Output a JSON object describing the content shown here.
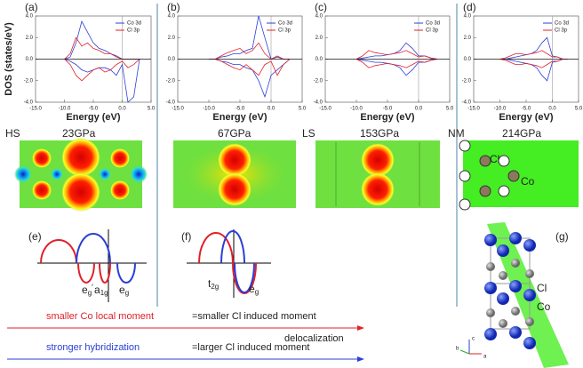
{
  "chart_data": [
    {
      "type": "line",
      "panel_label": "(a)",
      "y_label": "DOS (states/eV)",
      "x_label": "Energy (eV)",
      "x": [
        -10,
        -9,
        -8,
        -7,
        -6,
        -5,
        -4,
        -3,
        -2,
        -1,
        0,
        1,
        2,
        3
      ],
      "series": [
        {
          "name": "Co 3d",
          "color": "#2a3ed6",
          "values": [
            0,
            0.2,
            1.5,
            3.5,
            2.5,
            1.5,
            1,
            0.8,
            0.5,
            0.3,
            0,
            0,
            0,
            0
          ]
        },
        {
          "name": "Cl 3p",
          "color": "#e0202a",
          "values": [
            0,
            0.5,
            2,
            1.2,
            1.5,
            1,
            0.8,
            0.5,
            0.5,
            0.2,
            0,
            0,
            0,
            0
          ]
        },
        {
          "color": "#2a3ed6",
          "values": [
            0,
            -0.2,
            -0.5,
            -1,
            -1.2,
            -1,
            -0.8,
            -0.8,
            -1,
            -1.5,
            -0.5,
            -4,
            -3.5,
            0
          ]
        },
        {
          "color": "#e0202a",
          "values": [
            0,
            -0.5,
            -1.5,
            -2,
            -1.5,
            -1,
            -0.8,
            -1.2,
            -1,
            -0.5,
            -0.2,
            -0.8,
            -0.5,
            0
          ]
        }
      ],
      "xlim": [
        -15,
        5
      ],
      "xticks": [
        {
          "value": -15,
          "label": "-15.0"
        },
        {
          "value": -10,
          "label": "-10.0"
        },
        {
          "value": -5,
          "label": "-5.0"
        },
        {
          "value": 0,
          "label": "0.0"
        },
        {
          "value": 5,
          "label": "5.0"
        }
      ],
      "ylim": [
        -4,
        4
      ],
      "yticks": [
        {
          "value": -4,
          "label": "-4.0"
        },
        {
          "value": -2,
          "label": "-2.0"
        },
        {
          "value": 0,
          "label": "0.0"
        },
        {
          "value": 2,
          "label": "2.0"
        },
        {
          "value": 4,
          "label": "4.0"
        }
      ],
      "legend": "upper right"
    },
    {
      "type": "line",
      "panel_label": "(b)",
      "x_label": "Energy (eV)",
      "x": [
        -10,
        -9,
        -8,
        -7,
        -6,
        -5,
        -4,
        -3,
        -2,
        -1,
        0,
        1,
        2,
        3
      ],
      "series": [
        {
          "name": "Co 3d",
          "color": "#2a3ed6",
          "values": [
            0,
            0,
            0.2,
            0.3,
            0.5,
            0.5,
            0.8,
            1,
            4,
            2,
            0,
            0.2,
            0,
            0
          ]
        },
        {
          "name": "Cl 3p",
          "color": "#e0202a",
          "values": [
            0,
            0,
            0.3,
            0.6,
            0.8,
            1,
            0.5,
            0.8,
            1.5,
            0.5,
            0,
            0.3,
            0,
            0
          ]
        },
        {
          "color": "#2a3ed6",
          "values": [
            0,
            0,
            -0.2,
            -0.3,
            -0.5,
            -0.5,
            -0.8,
            -1,
            -2,
            -3.5,
            -1.5,
            -1,
            -0.5,
            0
          ]
        },
        {
          "color": "#e0202a",
          "values": [
            0,
            0,
            -0.2,
            -0.5,
            -0.8,
            -1,
            -0.5,
            -1,
            -1.5,
            -0.5,
            -0.2,
            -1.5,
            -0.5,
            0
          ]
        }
      ],
      "xlim": [
        -15,
        5
      ],
      "xticks": [
        {
          "value": -15,
          "label": "-15.0"
        },
        {
          "value": -10,
          "label": "-10.0"
        },
        {
          "value": -5,
          "label": "-5.0"
        },
        {
          "value": 0,
          "label": "0.0"
        },
        {
          "value": 5,
          "label": "5.0"
        }
      ],
      "ylim": [
        -4,
        4
      ],
      "yticks": [
        {
          "value": -4,
          "label": "-4.0"
        },
        {
          "value": -2,
          "label": "-2.0"
        },
        {
          "value": 0,
          "label": "0.0"
        },
        {
          "value": 2,
          "label": "2.0"
        },
        {
          "value": 4,
          "label": "4.0"
        }
      ],
      "legend": "upper right"
    },
    {
      "type": "line",
      "panel_label": "(c)",
      "x_label": "Energy (eV)",
      "x": [
        -10,
        -9,
        -8,
        -7,
        -6,
        -5,
        -4,
        -3,
        -2,
        -1,
        0,
        1,
        2,
        3
      ],
      "series": [
        {
          "name": "Co 3d",
          "color": "#2a3ed6",
          "values": [
            0,
            0.1,
            0.2,
            0.3,
            0.3,
            0.4,
            0.5,
            0.8,
            1.5,
            1,
            0.3,
            0.3,
            0.1,
            0
          ]
        },
        {
          "name": "Cl 3p",
          "color": "#e0202a",
          "values": [
            0,
            0.3,
            0.8,
            0.6,
            0.5,
            0.4,
            0.5,
            0.6,
            0.8,
            0.5,
            0.2,
            0.3,
            0.1,
            0
          ]
        },
        {
          "color": "#2a3ed6",
          "values": [
            0,
            -0.1,
            -0.2,
            -0.3,
            -0.3,
            -0.4,
            -0.5,
            -0.8,
            -1.5,
            -1,
            -0.3,
            -0.3,
            -0.1,
            0
          ]
        },
        {
          "color": "#e0202a",
          "values": [
            0,
            -0.3,
            -0.8,
            -0.6,
            -0.5,
            -0.4,
            -0.5,
            -0.6,
            -0.8,
            -0.5,
            -0.2,
            -0.3,
            -0.1,
            0
          ]
        }
      ],
      "xlim": [
        -15,
        5
      ],
      "xticks": [
        {
          "value": -15,
          "label": "-15.0"
        },
        {
          "value": -10,
          "label": "-10.0"
        },
        {
          "value": -5,
          "label": "-5.0"
        },
        {
          "value": 0,
          "label": "0.0"
        },
        {
          "value": 5,
          "label": "5.0"
        }
      ],
      "ylim": [
        -4,
        4
      ],
      "yticks": [
        {
          "value": -4,
          "label": "-4.0"
        },
        {
          "value": -2,
          "label": "-2.0"
        },
        {
          "value": 0,
          "label": "0.0"
        },
        {
          "value": 2,
          "label": "2.0"
        },
        {
          "value": 4,
          "label": "4.0"
        }
      ],
      "legend": "upper right"
    },
    {
      "type": "line",
      "panel_label": "(d)",
      "x_label": "Energy (eV)",
      "x": [
        -10,
        -9,
        -8,
        -7,
        -6,
        -5,
        -4,
        -3,
        -2,
        -1,
        0,
        1,
        2,
        3
      ],
      "series": [
        {
          "name": "Co 3d",
          "color": "#2a3ed6",
          "values": [
            0,
            0,
            0.1,
            0.2,
            0.3,
            0.4,
            0.5,
            0.8,
            1.5,
            2,
            0.3,
            0.2,
            0,
            0
          ]
        },
        {
          "name": "Cl 3p",
          "color": "#e0202a",
          "values": [
            0,
            0.1,
            0.3,
            0.5,
            0.5,
            0.4,
            0.5,
            0.6,
            0.8,
            0.5,
            0.2,
            0.2,
            0,
            0
          ]
        },
        {
          "color": "#2a3ed6",
          "values": [
            0,
            0,
            -0.1,
            -0.2,
            -0.3,
            -0.4,
            -0.5,
            -0.8,
            -1.5,
            -2,
            -0.3,
            -0.2,
            0,
            0
          ]
        },
        {
          "color": "#e0202a",
          "values": [
            0,
            -0.1,
            -0.3,
            -0.5,
            -0.5,
            -0.4,
            -0.5,
            -0.6,
            -0.8,
            -0.5,
            -0.2,
            -0.2,
            0,
            0
          ]
        }
      ],
      "xlim": [
        -15,
        5
      ],
      "xticks": [
        {
          "value": -15,
          "label": "-15.0"
        },
        {
          "value": -10,
          "label": "-10.0"
        },
        {
          "value": -5,
          "label": "-5.0"
        },
        {
          "value": 0,
          "label": "0.0"
        },
        {
          "value": 5,
          "label": "5.0"
        }
      ],
      "ylim": [
        -4,
        4
      ],
      "yticks": [
        {
          "value": -4,
          "label": "-4.0"
        },
        {
          "value": -2,
          "label": "-2.0"
        },
        {
          "value": 0,
          "label": "0.0"
        },
        {
          "value": 2,
          "label": "2.0"
        },
        {
          "value": 4,
          "label": "4.0"
        }
      ],
      "legend": "upper right"
    }
  ],
  "maps": {
    "hs": "HS",
    "p1": "23GPa",
    "p2": "67GPa",
    "ls": "LS",
    "p3": "153GPa",
    "nm": "NM",
    "p4": "214GPa",
    "cl": "Cl",
    "co": "Co"
  },
  "levels": {
    "e_label": "(e)",
    "f_label": "(f)",
    "e": [
      {
        "base": "e",
        "sub": "g",
        "sup": "′"
      },
      {
        "base": "a",
        "sub": "1g"
      },
      {
        "base": "e",
        "sub": "g"
      }
    ],
    "f": [
      {
        "base": "t",
        "sub": "2g"
      },
      {
        "base": "e",
        "sub": "g"
      }
    ]
  },
  "structure": {
    "label": "(g)",
    "cl": "Cl",
    "co": "Co",
    "axes": [
      "c",
      "b",
      "a"
    ]
  },
  "trends": {
    "red": "smaller Co local moment",
    "red_eq": "=smaller Cl induced moment",
    "deloc": "delocalization",
    "blue": "stronger hybridization",
    "blue_eq": "=larger Cl induced moment"
  }
}
